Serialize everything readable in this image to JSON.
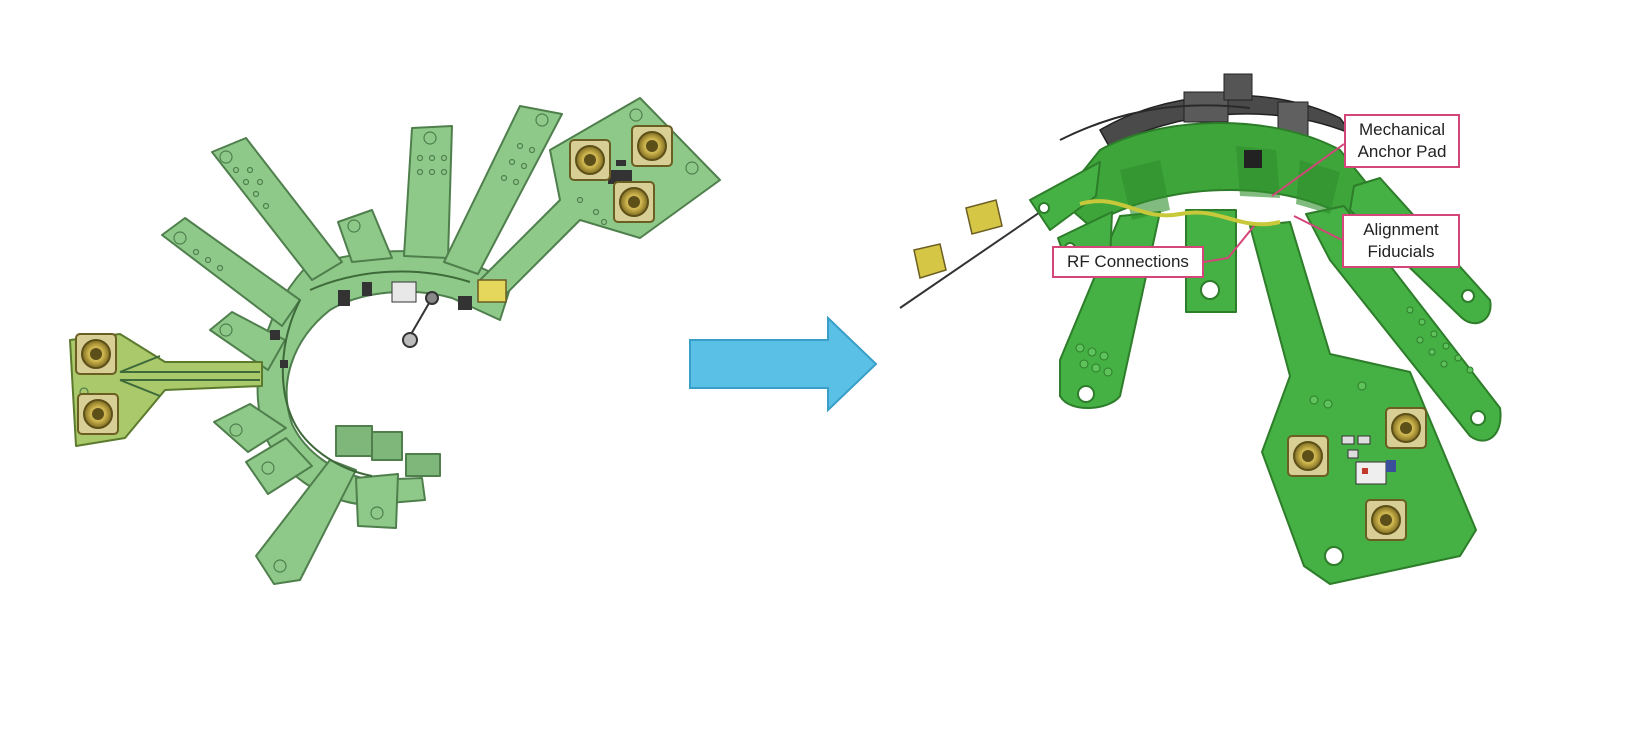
{
  "colors": {
    "flex_pcb_flat": "#8fc98a",
    "flex_pcb_flat_edge": "#4f7f4c",
    "flex_pcb_folded": "#3da53a",
    "flex_pcb_folded_dark": "#2d7d2a",
    "connector_gold": "#c9b14a",
    "arrow_fill": "#5bc0e6",
    "arrow_edge": "#3a9fc8",
    "callout_border": "#d4457a",
    "frame_dark": "#4a4a4a"
  },
  "icons": {
    "arrow": "right-arrow-icon",
    "connector": "rf-connector-icon"
  },
  "callouts": {
    "mechanical_anchor_line1": "Mechanical",
    "mechanical_anchor_line2": "Anchor Pad",
    "alignment_line1": "Alignment",
    "alignment_line2": "Fiducials",
    "rf_connections": "RF Connections"
  }
}
